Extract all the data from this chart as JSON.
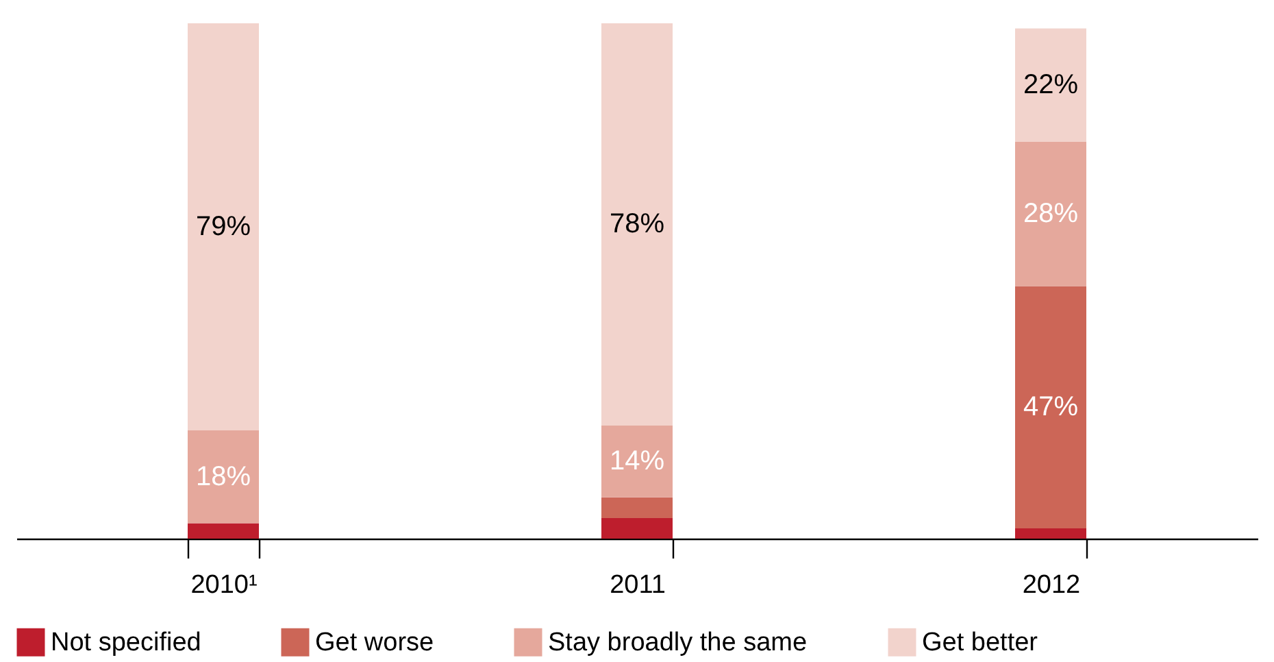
{
  "chart_data": {
    "type": "bar",
    "stacked": true,
    "categories": [
      "2010¹",
      "2011",
      "2012"
    ],
    "series": [
      {
        "name": "Not specified",
        "color": "#be1e2d",
        "values": [
          3,
          4,
          2
        ]
      },
      {
        "name": "Get worse",
        "color": "#cc6657",
        "values": [
          0,
          4,
          47
        ],
        "value_labels": [
          null,
          null,
          "47%"
        ]
      },
      {
        "name": "Stay broadly the same",
        "color": "#e5a89c",
        "values": [
          18,
          14,
          28
        ],
        "value_labels": [
          "18%",
          "14%",
          "28%"
        ]
      },
      {
        "name": "Get better",
        "color": "#f2d3cc",
        "values": [
          79,
          78,
          22
        ],
        "value_labels": [
          "79%",
          "78%",
          "22%"
        ]
      }
    ],
    "ylim": [
      0,
      100
    ],
    "tick_labels": "x",
    "legend": "bottom"
  }
}
